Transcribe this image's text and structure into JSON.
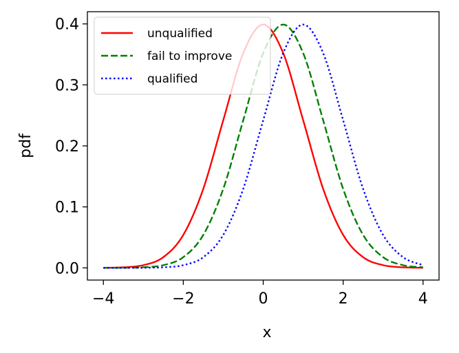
{
  "chart_data": {
    "type": "line",
    "title": "",
    "xlabel": "x",
    "ylabel": "pdf",
    "xlim": [
      -4.4,
      4.4
    ],
    "ylim": [
      -0.02,
      0.42
    ],
    "xticks": [
      -4,
      -2,
      0,
      2,
      4
    ],
    "xtick_labels": [
      "−4",
      "−2",
      "0",
      "2",
      "4"
    ],
    "yticks": [
      0.0,
      0.1,
      0.2,
      0.3,
      0.4
    ],
    "ytick_labels": [
      "0.0",
      "0.1",
      "0.2",
      "0.3",
      "0.4"
    ],
    "grid": false,
    "legend_position": "top-left",
    "x": [
      -4.0,
      -3.5,
      -3.0,
      -2.5,
      -2.0,
      -1.5,
      -1.0,
      -0.5,
      0.0,
      0.5,
      1.0,
      1.5,
      2.0,
      2.5,
      3.0,
      3.5,
      4.0
    ],
    "series": [
      {
        "name": "unqualified",
        "color": "#ff0000",
        "dash": "solid",
        "values": [
          0.0001,
          0.0009,
          0.0044,
          0.0175,
          0.054,
          0.1295,
          0.242,
          0.3521,
          0.3989,
          0.3521,
          0.242,
          0.1295,
          0.054,
          0.0175,
          0.0044,
          0.0009,
          0.0001
        ]
      },
      {
        "name": "fail to improve",
        "color": "#008000",
        "dash": "dashed",
        "values": [
          0.0,
          0.0002,
          0.0009,
          0.0044,
          0.0175,
          0.054,
          0.1295,
          0.242,
          0.3521,
          0.3989,
          0.3521,
          0.242,
          0.1295,
          0.054,
          0.0175,
          0.0044,
          0.0009
        ]
      },
      {
        "name": "qualified",
        "color": "#0000ff",
        "dash": "dotted",
        "values": [
          0.0,
          0.0,
          0.0002,
          0.0009,
          0.0044,
          0.0175,
          0.054,
          0.1295,
          0.242,
          0.3521,
          0.3989,
          0.3521,
          0.242,
          0.1295,
          0.054,
          0.0175,
          0.0044
        ]
      }
    ]
  }
}
